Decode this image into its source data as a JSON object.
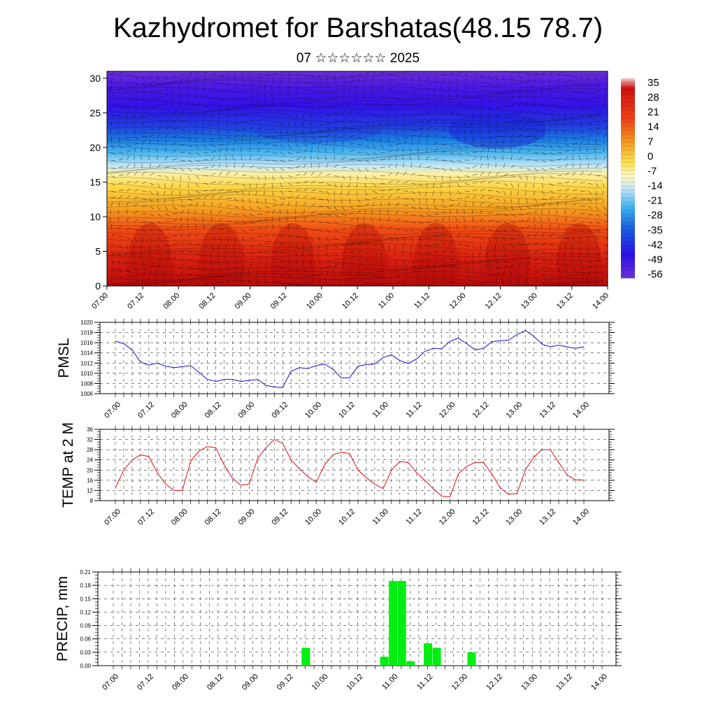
{
  "title": "Kazhydromet for Barshatas(48.15 78.7)",
  "subtitle": "07 ☆☆☆☆☆☆ 2025",
  "x_tick_labels": [
    "07.00",
    "07.12",
    "08.00",
    "08.12",
    "09.00",
    "09.12",
    "10.00",
    "10.12",
    "11.00",
    "11.12",
    "12.00",
    "12.12",
    "13.00",
    "13.12",
    "14.00"
  ],
  "chart_data": [
    {
      "type": "heatmap",
      "name": "cross-section",
      "ylim": [
        0,
        31
      ],
      "y_ticks": [
        0,
        5,
        10,
        15,
        20,
        25,
        30
      ],
      "colorbar_labels": [
        "35",
        "28",
        "21",
        "14",
        "7",
        "0",
        "-7",
        "-14",
        "-21",
        "-28",
        "-35",
        "-42",
        "-49",
        "-56"
      ],
      "colors": {
        "warm": "#cc1010",
        "orange": "#f39a1c",
        "yellow": "#fbe35a",
        "cold": "#1a8be0",
        "deep": "#3416e6"
      }
    },
    {
      "type": "line",
      "ylabel": "PMSL",
      "ylim": [
        1006,
        1020
      ],
      "y_ticks": [
        1006,
        1008,
        1010,
        1012,
        1014,
        1016,
        1018,
        1020
      ],
      "color": "#1010d0",
      "values": [
        1016.3,
        1015.8,
        1014.6,
        1012.2,
        1011.6,
        1012.0,
        1011.4,
        1011.1,
        1011.3,
        1011.5,
        1010.2,
        1008.8,
        1008.4,
        1008.8,
        1008.8,
        1008.4,
        1008.6,
        1008.8,
        1007.6,
        1007.3,
        1007.2,
        1010.4,
        1011.1,
        1010.9,
        1011.5,
        1011.8,
        1010.8,
        1009.1,
        1009.1,
        1011.4,
        1011.7,
        1011.8,
        1013.1,
        1013.6,
        1012.5,
        1011.9,
        1012.8,
        1014.3,
        1014.9,
        1014.8,
        1016.3,
        1016.9,
        1015.8,
        1014.6,
        1014.9,
        1016.2,
        1016.4,
        1016.5,
        1017.6,
        1018.4,
        1017.3,
        1015.7,
        1015.2,
        1015.5,
        1015.2,
        1014.9,
        1015.2
      ]
    },
    {
      "type": "line",
      "ylabel": "TEMP at 2 M",
      "ylim": [
        8,
        36
      ],
      "y_ticks": [
        8,
        12,
        16,
        20,
        24,
        28,
        32,
        36
      ],
      "color": "#e01010",
      "values": [
        13.0,
        20.0,
        24.0,
        26.0,
        25.3,
        19.0,
        14.5,
        12.0,
        12.0,
        23.5,
        27.5,
        29.2,
        28.8,
        22.0,
        16.8,
        14.0,
        14.5,
        24.5,
        28.8,
        32.0,
        30.5,
        24.0,
        20.5,
        17.5,
        15.2,
        22.0,
        26.0,
        27.0,
        26.5,
        20.0,
        17.0,
        14.5,
        12.7,
        20.0,
        23.3,
        23.0,
        19.0,
        16.0,
        12.7,
        9.7,
        9.5,
        18.5,
        21.5,
        23.0,
        23.0,
        18.5,
        13.0,
        10.5,
        10.8,
        20.0,
        25.0,
        28.0,
        28.0,
        23.0,
        18.0,
        16.2,
        16.1
      ]
    },
    {
      "type": "bar",
      "ylabel": "PRECIP, mm",
      "ylim": [
        0,
        0.21
      ],
      "y_ticks": [
        "0.00",
        "0.03",
        "0.06",
        "0.09",
        "0.12",
        "0.15",
        "0.18",
        "0.21"
      ],
      "color": "#00ee10",
      "values": [
        0,
        0,
        0,
        0,
        0,
        0,
        0,
        0,
        0,
        0,
        0,
        0,
        0,
        0,
        0,
        0,
        0,
        0,
        0,
        0,
        0,
        0,
        0.04,
        0,
        0,
        0,
        0,
        0,
        0,
        0,
        0,
        0.02,
        0.19,
        0.19,
        0.01,
        0,
        0.05,
        0.04,
        0,
        0,
        0,
        0.03,
        0,
        0,
        0,
        0,
        0,
        0,
        0,
        0,
        0,
        0,
        0,
        0,
        0,
        0,
        0
      ]
    }
  ]
}
